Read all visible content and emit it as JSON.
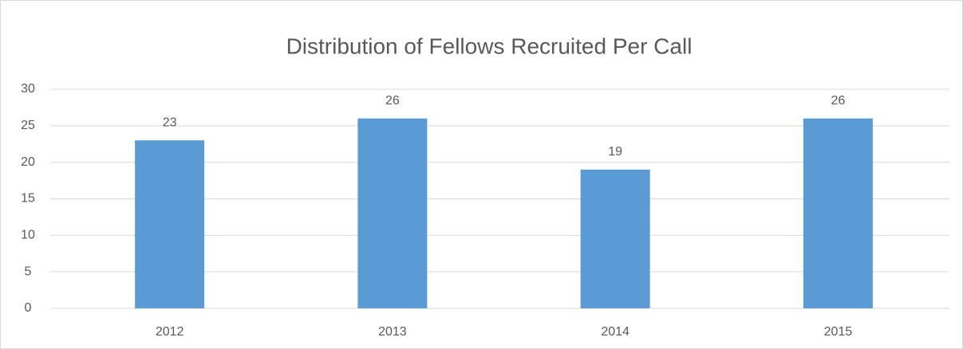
{
  "chart_data": {
    "type": "bar",
    "title": "Distribution of Fellows Recruited Per Call",
    "categories": [
      "2012",
      "2013",
      "2014",
      "2015"
    ],
    "values": [
      23,
      26,
      19,
      26
    ],
    "color": "#5b9bd5",
    "ylim": [
      0,
      30
    ],
    "yticks": [
      0,
      5,
      10,
      15,
      20,
      25,
      30
    ],
    "grid": true
  }
}
